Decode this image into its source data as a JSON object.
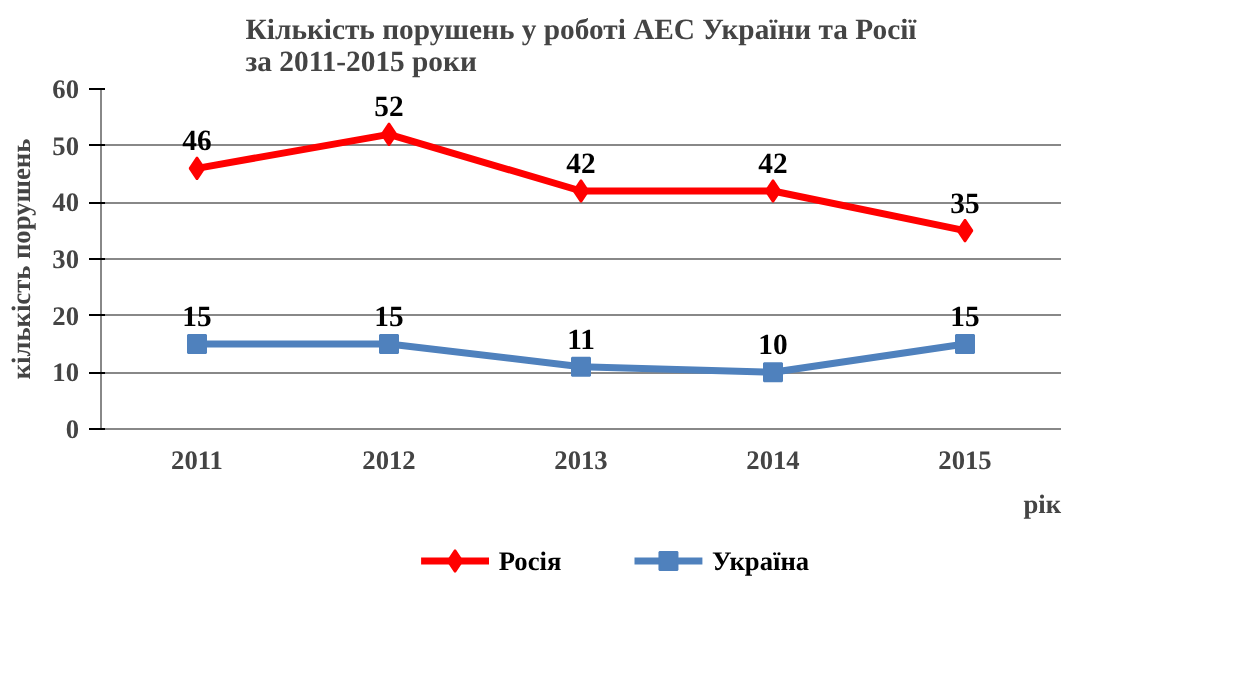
{
  "chart_data": {
    "type": "line",
    "title": "Кількість порушень у роботі АЕС України та Росії\nза 2011-2015 роки",
    "xlabel": "рік",
    "ylabel": "кількість порушень",
    "categories": [
      "2011",
      "2012",
      "2013",
      "2014",
      "2015"
    ],
    "series": [
      {
        "name": "Росія",
        "color": "#ff0000",
        "marker": "diamond",
        "values": [
          46,
          52,
          42,
          42,
          35
        ]
      },
      {
        "name": "Україна",
        "color": "#4f81bd",
        "marker": "square",
        "values": [
          15,
          15,
          11,
          10,
          15
        ]
      }
    ],
    "ylim": [
      0,
      60
    ],
    "yticks": [
      0,
      10,
      20,
      30,
      40,
      50,
      60
    ],
    "grid": "y",
    "legend": "bottom",
    "data_labels": true
  }
}
